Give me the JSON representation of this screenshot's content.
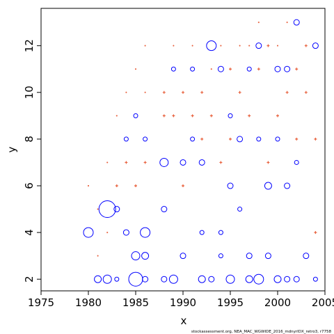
{
  "chart_data": {
    "type": "scatter",
    "xlabel": "x",
    "ylabel": "y",
    "xlim": [
      1975,
      2005
    ],
    "ylim": [
      1.5,
      13.6
    ],
    "x_ticks": [
      1975,
      1980,
      1985,
      1990,
      1995,
      2000,
      2005
    ],
    "y_ticks": [
      2,
      4,
      6,
      8,
      10,
      12
    ],
    "grid": false,
    "legend": "none",
    "caption": "stockassessment.org, NEA_MAC_WGWIDE_2016_mdnyrIDX_retro3, r7758",
    "colors": {
      "positive": "#e8603c",
      "negative": "#0000ff"
    },
    "series": [
      {
        "color_key": "negative",
        "marker": "open-circle",
        "points": [
          [
            1980,
            4,
            7
          ],
          [
            1981,
            2,
            5
          ],
          [
            1982,
            5,
            12
          ],
          [
            1982,
            2,
            6
          ],
          [
            1983,
            5,
            4
          ],
          [
            1983,
            2,
            3
          ],
          [
            1984,
            4,
            4
          ],
          [
            1984,
            8,
            3
          ],
          [
            1985,
            2,
            10
          ],
          [
            1985,
            3,
            6
          ],
          [
            1985,
            9,
            3
          ],
          [
            1986,
            4,
            7
          ],
          [
            1986,
            3,
            5
          ],
          [
            1986,
            8,
            3
          ],
          [
            1986,
            2,
            4
          ],
          [
            1988,
            7,
            6
          ],
          [
            1988,
            5,
            4
          ],
          [
            1988,
            2,
            4
          ],
          [
            1989,
            2,
            6
          ],
          [
            1989,
            11,
            3
          ],
          [
            1990,
            7,
            4
          ],
          [
            1990,
            3,
            4
          ],
          [
            1991,
            8,
            3
          ],
          [
            1991,
            11,
            3
          ],
          [
            1992,
            2,
            5
          ],
          [
            1992,
            7,
            4
          ],
          [
            1992,
            4,
            3
          ],
          [
            1993,
            12,
            7
          ],
          [
            1993,
            2,
            4
          ],
          [
            1994,
            11,
            4
          ],
          [
            1994,
            4,
            3
          ],
          [
            1994,
            3,
            3
          ],
          [
            1995,
            2,
            6
          ],
          [
            1995,
            6,
            4
          ],
          [
            1995,
            9,
            3
          ],
          [
            1996,
            8,
            4
          ],
          [
            1996,
            5,
            3
          ],
          [
            1997,
            2,
            5
          ],
          [
            1997,
            11,
            3
          ],
          [
            1997,
            3,
            4
          ],
          [
            1998,
            12,
            4
          ],
          [
            1998,
            2,
            7
          ],
          [
            1998,
            8,
            3
          ],
          [
            1999,
            6,
            5
          ],
          [
            1999,
            3,
            4
          ],
          [
            2000,
            11,
            4
          ],
          [
            2000,
            8,
            3
          ],
          [
            2000,
            2,
            5
          ],
          [
            2001,
            11,
            4
          ],
          [
            2001,
            6,
            4
          ],
          [
            2001,
            2,
            4
          ],
          [
            2002,
            13,
            4
          ],
          [
            2002,
            7,
            3
          ],
          [
            2002,
            2,
            4
          ],
          [
            2003,
            3,
            4
          ],
          [
            2004,
            12,
            4
          ],
          [
            2004,
            2,
            3
          ]
        ]
      },
      {
        "color_key": "positive",
        "marker": "cross",
        "points": [
          [
            1980,
            6,
            1
          ],
          [
            1981,
            5,
            1
          ],
          [
            1981,
            3,
            1
          ],
          [
            1982,
            7,
            1
          ],
          [
            1982,
            4,
            1
          ],
          [
            1983,
            9,
            1
          ],
          [
            1983,
            6,
            2
          ],
          [
            1984,
            10,
            1
          ],
          [
            1984,
            7,
            2
          ],
          [
            1985,
            11,
            1
          ],
          [
            1985,
            6,
            2
          ],
          [
            1986,
            12,
            1
          ],
          [
            1986,
            10,
            1
          ],
          [
            1986,
            7,
            2
          ],
          [
            1988,
            10,
            2
          ],
          [
            1988,
            9,
            2
          ],
          [
            1989,
            12,
            1
          ],
          [
            1989,
            9,
            2
          ],
          [
            1990,
            10,
            2
          ],
          [
            1990,
            6,
            2
          ],
          [
            1991,
            12,
            1
          ],
          [
            1991,
            9,
            2
          ],
          [
            1992,
            10,
            2
          ],
          [
            1992,
            8,
            2
          ],
          [
            1993,
            11,
            1
          ],
          [
            1993,
            9,
            2
          ],
          [
            1994,
            12,
            1
          ],
          [
            1994,
            7,
            2
          ],
          [
            1995,
            11,
            2
          ],
          [
            1995,
            8,
            2
          ],
          [
            1996,
            12,
            1
          ],
          [
            1996,
            10,
            2
          ],
          [
            1997,
            12,
            1
          ],
          [
            1997,
            9,
            2
          ],
          [
            1998,
            13,
            1
          ],
          [
            1998,
            11,
            2
          ],
          [
            1999,
            12,
            2
          ],
          [
            1999,
            7,
            2
          ],
          [
            2000,
            12,
            1
          ],
          [
            2000,
            9,
            2
          ],
          [
            2001,
            13,
            1
          ],
          [
            2001,
            10,
            2
          ],
          [
            2002,
            11,
            2
          ],
          [
            2002,
            8,
            2
          ],
          [
            2003,
            12,
            2
          ],
          [
            2003,
            10,
            2
          ],
          [
            2004,
            8,
            2
          ],
          [
            2004,
            4,
            2
          ]
        ]
      }
    ]
  }
}
